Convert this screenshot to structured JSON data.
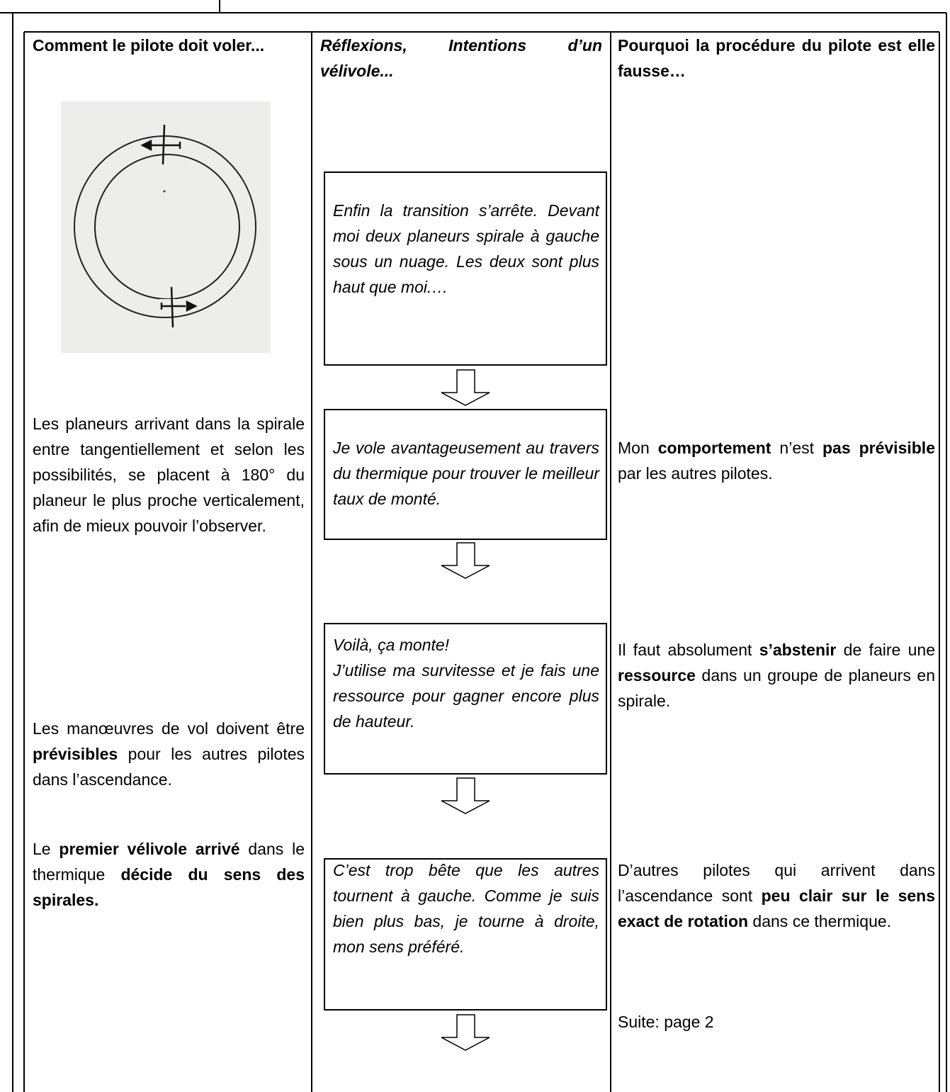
{
  "left": {
    "header": "Comment le pilote doit voler...",
    "paragraphs": [
      [
        "Les planeurs arrivant dans la spirale entre tangentiellement et  selon les possibilités, se placent à 180° du planeur le plus proche verticalement, afin de mieux pouvoir l’observer."
      ],
      [
        "Les manœuvres de vol doivent être ",
        {
          "bold": "prévisibles"
        },
        " pour les autres pilotes dans l’ascendance."
      ],
      [
        "Le ",
        {
          "bold": "premier vélivole arrivé"
        },
        " dans le thermique ",
        {
          "bold": "décide du sens des spirales."
        }
      ]
    ]
  },
  "middle": {
    "header": "Réflexions, Intentions d’un vélivole...",
    "boxes": [
      [
        "Enfin la transition s’arrête. Devant moi deux planeurs spirale à gauche sous un nuage. Les deux sont plus haut que moi.…"
      ],
      [
        "Je vole avantageusement au travers du thermique pour trouver le meilleur taux de monté."
      ],
      [
        "Voilà, ça monte!",
        "J’utilise ma survitesse et je fais une ressource pour gagner encore plus de hauteur."
      ],
      [
        "C’est trop bête que les autres tournent à gauche. Comme je suis bien plus bas, je tourne à droite, mon sens préféré."
      ]
    ]
  },
  "right": {
    "header": "Pourquoi la procédure du pilote est elle fausse…",
    "paragraphs": [
      [
        "Mon ",
        {
          "bold": "comportement"
        },
        " n’est ",
        {
          "bold": "pas prévisible"
        },
        " par les autres pilotes."
      ],
      [
        "Il faut absolument ",
        {
          "bold": "s’abstenir"
        },
        " de faire une ",
        {
          "bold": "ressource"
        },
        " dans un groupe de planeurs en spirale."
      ],
      [
        "D’autres pilotes qui arrivent dans l’ascendance sont ",
        {
          "bold": "peu clair sur le sens exact de rotation"
        },
        " dans ce thermique."
      ]
    ],
    "footer": "Suite: page 2"
  }
}
